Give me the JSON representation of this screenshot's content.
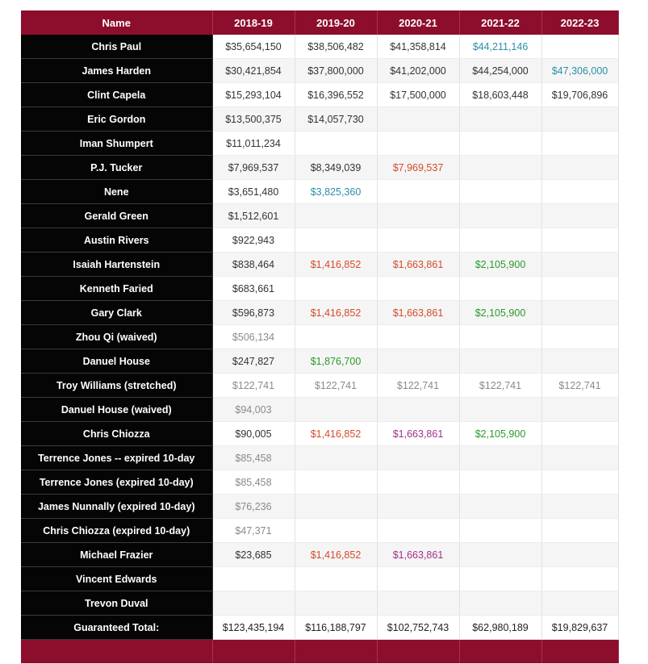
{
  "header": {
    "name": "Name",
    "years": [
      "2018-19",
      "2019-20",
      "2020-21",
      "2021-22",
      "2022-23"
    ]
  },
  "colors": {
    "header_bg": "#8c0e2c",
    "name_bg": "#050505",
    "team_option": "#d54a2a",
    "player_option": "#2a8fa8",
    "qualifying_offer": "#2a9a2a",
    "rookie_scale": "#a0308c",
    "non_guaranteed": "#8a8a8a"
  },
  "rows": [
    {
      "name": "Chris Paul",
      "cells": [
        {
          "v": "$35,654,150",
          "c": "default"
        },
        {
          "v": "$38,506,482",
          "c": "default"
        },
        {
          "v": "$41,358,814",
          "c": "default"
        },
        {
          "v": "$44,211,146",
          "c": "player"
        },
        {
          "v": "",
          "c": "default"
        }
      ]
    },
    {
      "name": "James Harden",
      "cells": [
        {
          "v": "$30,421,854",
          "c": "default"
        },
        {
          "v": "$37,800,000",
          "c": "default"
        },
        {
          "v": "$41,202,000",
          "c": "default"
        },
        {
          "v": "$44,254,000",
          "c": "default"
        },
        {
          "v": "$47,306,000",
          "c": "player"
        }
      ]
    },
    {
      "name": "Clint Capela",
      "cells": [
        {
          "v": "$15,293,104",
          "c": "default"
        },
        {
          "v": "$16,396,552",
          "c": "default"
        },
        {
          "v": "$17,500,000",
          "c": "default"
        },
        {
          "v": "$18,603,448",
          "c": "default"
        },
        {
          "v": "$19,706,896",
          "c": "default"
        }
      ]
    },
    {
      "name": "Eric Gordon",
      "cells": [
        {
          "v": "$13,500,375",
          "c": "default"
        },
        {
          "v": "$14,057,730",
          "c": "default"
        },
        {
          "v": "",
          "c": "default"
        },
        {
          "v": "",
          "c": "default"
        },
        {
          "v": "",
          "c": "default"
        }
      ]
    },
    {
      "name": "Iman Shumpert",
      "cells": [
        {
          "v": "$11,011,234",
          "c": "default"
        },
        {
          "v": "",
          "c": "default"
        },
        {
          "v": "",
          "c": "default"
        },
        {
          "v": "",
          "c": "default"
        },
        {
          "v": "",
          "c": "default"
        }
      ]
    },
    {
      "name": "P.J. Tucker",
      "cells": [
        {
          "v": "$7,969,537",
          "c": "default"
        },
        {
          "v": "$8,349,039",
          "c": "default"
        },
        {
          "v": "$7,969,537",
          "c": "team"
        },
        {
          "v": "",
          "c": "default"
        },
        {
          "v": "",
          "c": "default"
        }
      ]
    },
    {
      "name": "Nene",
      "cells": [
        {
          "v": "$3,651,480",
          "c": "default"
        },
        {
          "v": "$3,825,360",
          "c": "player"
        },
        {
          "v": "",
          "c": "default"
        },
        {
          "v": "",
          "c": "default"
        },
        {
          "v": "",
          "c": "default"
        }
      ]
    },
    {
      "name": "Gerald Green",
      "cells": [
        {
          "v": "$1,512,601",
          "c": "default"
        },
        {
          "v": "",
          "c": "default"
        },
        {
          "v": "",
          "c": "default"
        },
        {
          "v": "",
          "c": "default"
        },
        {
          "v": "",
          "c": "default"
        }
      ]
    },
    {
      "name": "Austin Rivers",
      "cells": [
        {
          "v": "$922,943",
          "c": "default"
        },
        {
          "v": "",
          "c": "default"
        },
        {
          "v": "",
          "c": "default"
        },
        {
          "v": "",
          "c": "default"
        },
        {
          "v": "",
          "c": "default"
        }
      ]
    },
    {
      "name": "Isaiah Hartenstein",
      "cells": [
        {
          "v": "$838,464",
          "c": "default"
        },
        {
          "v": "$1,416,852",
          "c": "team"
        },
        {
          "v": "$1,663,861",
          "c": "team"
        },
        {
          "v": "$2,105,900",
          "c": "qual"
        },
        {
          "v": "",
          "c": "default"
        }
      ]
    },
    {
      "name": "Kenneth Faried",
      "cells": [
        {
          "v": "$683,661",
          "c": "default"
        },
        {
          "v": "",
          "c": "default"
        },
        {
          "v": "",
          "c": "default"
        },
        {
          "v": "",
          "c": "default"
        },
        {
          "v": "",
          "c": "default"
        }
      ]
    },
    {
      "name": "Gary Clark",
      "cells": [
        {
          "v": "$596,873",
          "c": "default"
        },
        {
          "v": "$1,416,852",
          "c": "team"
        },
        {
          "v": "$1,663,861",
          "c": "team"
        },
        {
          "v": "$2,105,900",
          "c": "qual"
        },
        {
          "v": "",
          "c": "default"
        }
      ]
    },
    {
      "name": "Zhou Qi (waived)",
      "cells": [
        {
          "v": "$506,134",
          "c": "gray"
        },
        {
          "v": "",
          "c": "default"
        },
        {
          "v": "",
          "c": "default"
        },
        {
          "v": "",
          "c": "default"
        },
        {
          "v": "",
          "c": "default"
        }
      ]
    },
    {
      "name": "Danuel House",
      "cells": [
        {
          "v": "$247,827",
          "c": "default"
        },
        {
          "v": "$1,876,700",
          "c": "qual"
        },
        {
          "v": "",
          "c": "default"
        },
        {
          "v": "",
          "c": "default"
        },
        {
          "v": "",
          "c": "default"
        }
      ]
    },
    {
      "name": "Troy Williams (stretched)",
      "cells": [
        {
          "v": "$122,741",
          "c": "gray"
        },
        {
          "v": "$122,741",
          "c": "gray"
        },
        {
          "v": "$122,741",
          "c": "gray"
        },
        {
          "v": "$122,741",
          "c": "gray"
        },
        {
          "v": "$122,741",
          "c": "gray"
        }
      ]
    },
    {
      "name": "Danuel House (waived)",
      "cells": [
        {
          "v": "$94,003",
          "c": "gray"
        },
        {
          "v": "",
          "c": "default"
        },
        {
          "v": "",
          "c": "default"
        },
        {
          "v": "",
          "c": "default"
        },
        {
          "v": "",
          "c": "default"
        }
      ]
    },
    {
      "name": "Chris Chiozza",
      "cells": [
        {
          "v": "$90,005",
          "c": "default"
        },
        {
          "v": "$1,416,852",
          "c": "team"
        },
        {
          "v": "$1,663,861",
          "c": "rookie"
        },
        {
          "v": "$2,105,900",
          "c": "qual"
        },
        {
          "v": "",
          "c": "default"
        }
      ]
    },
    {
      "name": "Terrence Jones -- expired 10-day",
      "cells": [
        {
          "v": "$85,458",
          "c": "gray"
        },
        {
          "v": "",
          "c": "default"
        },
        {
          "v": "",
          "c": "default"
        },
        {
          "v": "",
          "c": "default"
        },
        {
          "v": "",
          "c": "default"
        }
      ]
    },
    {
      "name": "Terrence Jones (expired 10-day)",
      "cells": [
        {
          "v": "$85,458",
          "c": "gray"
        },
        {
          "v": "",
          "c": "default"
        },
        {
          "v": "",
          "c": "default"
        },
        {
          "v": "",
          "c": "default"
        },
        {
          "v": "",
          "c": "default"
        }
      ]
    },
    {
      "name": "James Nunnally (expired 10-day)",
      "cells": [
        {
          "v": "$76,236",
          "c": "gray"
        },
        {
          "v": "",
          "c": "default"
        },
        {
          "v": "",
          "c": "default"
        },
        {
          "v": "",
          "c": "default"
        },
        {
          "v": "",
          "c": "default"
        }
      ]
    },
    {
      "name": "Chris Chiozza (expired 10-day)",
      "cells": [
        {
          "v": "$47,371",
          "c": "gray"
        },
        {
          "v": "",
          "c": "default"
        },
        {
          "v": "",
          "c": "default"
        },
        {
          "v": "",
          "c": "default"
        },
        {
          "v": "",
          "c": "default"
        }
      ]
    },
    {
      "name": "Michael Frazier",
      "cells": [
        {
          "v": "$23,685",
          "c": "default"
        },
        {
          "v": "$1,416,852",
          "c": "team"
        },
        {
          "v": "$1,663,861",
          "c": "rookie"
        },
        {
          "v": "",
          "c": "default"
        },
        {
          "v": "",
          "c": "default"
        }
      ]
    },
    {
      "name": "Vincent Edwards",
      "cells": [
        {
          "v": "",
          "c": "default"
        },
        {
          "v": "",
          "c": "default"
        },
        {
          "v": "",
          "c": "default"
        },
        {
          "v": "",
          "c": "default"
        },
        {
          "v": "",
          "c": "default"
        }
      ]
    },
    {
      "name": "Trevon Duval",
      "cells": [
        {
          "v": "",
          "c": "default"
        },
        {
          "v": "",
          "c": "default"
        },
        {
          "v": "",
          "c": "default"
        },
        {
          "v": "",
          "c": "default"
        },
        {
          "v": "",
          "c": "default"
        }
      ]
    }
  ],
  "guaranteed_total": {
    "label": "Guaranteed Total:",
    "values": [
      "$123,435,194",
      "$116,188,797",
      "$102,752,743",
      "$62,980,189",
      "$19,829,637"
    ]
  },
  "cap_total": {
    "label": "",
    "values": [
      "",
      "",
      "",
      "",
      ""
    ]
  }
}
